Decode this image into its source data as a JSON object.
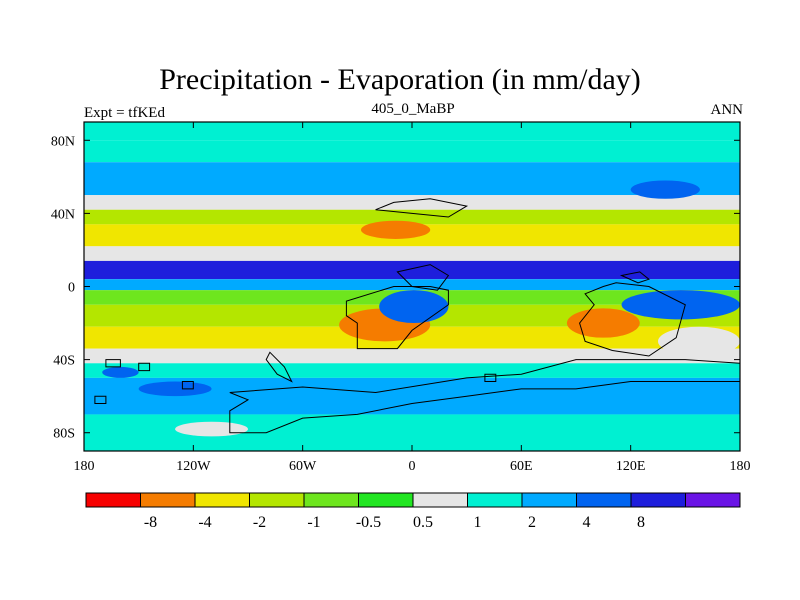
{
  "chart_data": {
    "type": "heatmap",
    "title": "Precipitation - Evaporation (in mm/day)",
    "subtitle_left": "Expt = tfKEd",
    "subtitle_center": "405_0_MaBP",
    "subtitle_right": "ANN",
    "x_range": [
      -180,
      180
    ],
    "y_range": [
      -90,
      90
    ],
    "x_ticks": [
      {
        "value": -180,
        "label": "180"
      },
      {
        "value": -120,
        "label": "120W"
      },
      {
        "value": -60,
        "label": "60W"
      },
      {
        "value": 0,
        "label": "0"
      },
      {
        "value": 60,
        "label": "60E"
      },
      {
        "value": 120,
        "label": "120E"
      },
      {
        "value": 180,
        "label": "180"
      }
    ],
    "y_ticks": [
      {
        "value": 80,
        "label": "80N"
      },
      {
        "value": 40,
        "label": "40N"
      },
      {
        "value": 0,
        "label": "0"
      },
      {
        "value": -40,
        "label": "40S"
      },
      {
        "value": -80,
        "label": "80S"
      }
    ],
    "colorbar": {
      "colors": [
        "#f70000",
        "#f57c00",
        "#f0e600",
        "#b4e600",
        "#6ee61e",
        "#22e622",
        "#e6e6e6",
        "#00f0d2",
        "#00aaff",
        "#0064f0",
        "#1e1edc",
        "#6a14e6"
      ],
      "labels": [
        "-8",
        "-4",
        "-2",
        "-1",
        "-0.5",
        "0.5",
        "1",
        "2",
        "4",
        "8"
      ]
    },
    "bands": [
      {
        "lat_from": 90,
        "lat_to": 80,
        "level": 7
      },
      {
        "lat_from": 80,
        "lat_to": 68,
        "level": 7
      },
      {
        "lat_from": 68,
        "lat_to": 50,
        "level": 8
      },
      {
        "lat_from": 50,
        "lat_to": 42,
        "level": 6
      },
      {
        "lat_from": 42,
        "lat_to": 34,
        "level": 3
      },
      {
        "lat_from": 34,
        "lat_to": 22,
        "level": 2
      },
      {
        "lat_from": 22,
        "lat_to": 14,
        "level": 6
      },
      {
        "lat_from": 14,
        "lat_to": 4,
        "level": 10
      },
      {
        "lat_from": 4,
        "lat_to": -2,
        "level": 8
      },
      {
        "lat_from": -2,
        "lat_to": -10,
        "level": 4
      },
      {
        "lat_from": -10,
        "lat_to": -22,
        "level": 3
      },
      {
        "lat_from": -22,
        "lat_to": -34,
        "level": 2
      },
      {
        "lat_from": -34,
        "lat_to": -42,
        "level": 6
      },
      {
        "lat_from": -42,
        "lat_to": -50,
        "level": 7
      },
      {
        "lat_from": -50,
        "lat_to": -70,
        "level": 8
      },
      {
        "lat_from": -70,
        "lat_to": -90,
        "level": 7
      }
    ],
    "features": [
      {
        "lon": [
          -40,
          10
        ],
        "lat": [
          -12,
          -30
        ],
        "level": 1
      },
      {
        "lon": [
          85,
          125
        ],
        "lat": [
          -12,
          -28
        ],
        "level": 1
      },
      {
        "lon": [
          -28,
          10
        ],
        "lat": [
          36,
          26
        ],
        "level": 1
      },
      {
        "lon": [
          -18,
          20
        ],
        "lat": [
          -2,
          -20
        ],
        "level": 9
      },
      {
        "lon": [
          115,
          180
        ],
        "lat": [
          -2,
          -18
        ],
        "level": 9
      },
      {
        "lon": [
          120,
          158
        ],
        "lat": [
          58,
          48
        ],
        "level": 9
      },
      {
        "lon": [
          -170,
          -150
        ],
        "lat": [
          -44,
          -50
        ],
        "level": 9
      },
      {
        "lon": [
          -150,
          -110
        ],
        "lat": [
          -52,
          -60
        ],
        "level": 9
      },
      {
        "lon": [
          135,
          180
        ],
        "lat": [
          -22,
          -38
        ],
        "level": 6
      },
      {
        "lon": [
          -130,
          -90
        ],
        "lat": [
          -74,
          -82
        ],
        "level": 6
      }
    ],
    "land_outlines": [
      [
        [
          -36,
          -8
        ],
        [
          -36,
          -16
        ],
        [
          -30,
          -20
        ],
        [
          -30,
          -34
        ],
        [
          -8,
          -34
        ],
        [
          0,
          -24
        ],
        [
          20,
          -10
        ],
        [
          20,
          -2
        ],
        [
          10,
          0
        ],
        [
          -10,
          0
        ]
      ],
      [
        [
          -20,
          42
        ],
        [
          0,
          40
        ],
        [
          20,
          38
        ],
        [
          30,
          44
        ],
        [
          10,
          48
        ],
        [
          -10,
          46
        ]
      ],
      [
        [
          -8,
          8
        ],
        [
          10,
          12
        ],
        [
          20,
          6
        ],
        [
          14,
          -2
        ],
        [
          0,
          0
        ]
      ],
      [
        [
          95,
          -4
        ],
        [
          105,
          0
        ],
        [
          112,
          2
        ],
        [
          130,
          0
        ],
        [
          150,
          -10
        ],
        [
          145,
          -28
        ],
        [
          130,
          -38
        ],
        [
          110,
          -35
        ],
        [
          95,
          -30
        ],
        [
          92,
          -20
        ],
        [
          100,
          -10
        ]
      ],
      [
        [
          115,
          6
        ],
        [
          125,
          8
        ],
        [
          130,
          4
        ],
        [
          124,
          2
        ]
      ],
      [
        [
          -78,
          -36
        ],
        [
          -70,
          -44
        ],
        [
          -66,
          -52
        ],
        [
          -74,
          -48
        ],
        [
          -80,
          -40
        ]
      ],
      [
        [
          -100,
          -58
        ],
        [
          -60,
          -55
        ],
        [
          -20,
          -58
        ],
        [
          30,
          -50
        ],
        [
          60,
          -48
        ],
        [
          90,
          -40
        ],
        [
          120,
          -40
        ],
        [
          150,
          -40
        ],
        [
          180,
          -42
        ],
        [
          180,
          -52
        ],
        [
          160,
          -52
        ],
        [
          120,
          -52
        ],
        [
          90,
          -56
        ],
        [
          60,
          -56
        ],
        [
          30,
          -60
        ],
        [
          0,
          -64
        ],
        [
          -30,
          -70
        ],
        [
          -60,
          -72
        ],
        [
          -80,
          -80
        ],
        [
          -100,
          -80
        ],
        [
          -100,
          -68
        ],
        [
          -90,
          -62
        ]
      ],
      [
        [
          -168,
          -40
        ],
        [
          -160,
          -40
        ],
        [
          -160,
          -44
        ],
        [
          -168,
          -44
        ]
      ],
      [
        [
          -150,
          -42
        ],
        [
          -144,
          -42
        ],
        [
          -144,
          -46
        ],
        [
          -150,
          -46
        ]
      ],
      [
        [
          -126,
          -52
        ],
        [
          -120,
          -52
        ],
        [
          -120,
          -56
        ],
        [
          -126,
          -56
        ]
      ],
      [
        [
          -174,
          -60
        ],
        [
          -168,
          -60
        ],
        [
          -168,
          -64
        ],
        [
          -174,
          -64
        ]
      ],
      [
        [
          40,
          -48
        ],
        [
          46,
          -48
        ],
        [
          46,
          -52
        ],
        [
          40,
          -52
        ]
      ]
    ]
  }
}
